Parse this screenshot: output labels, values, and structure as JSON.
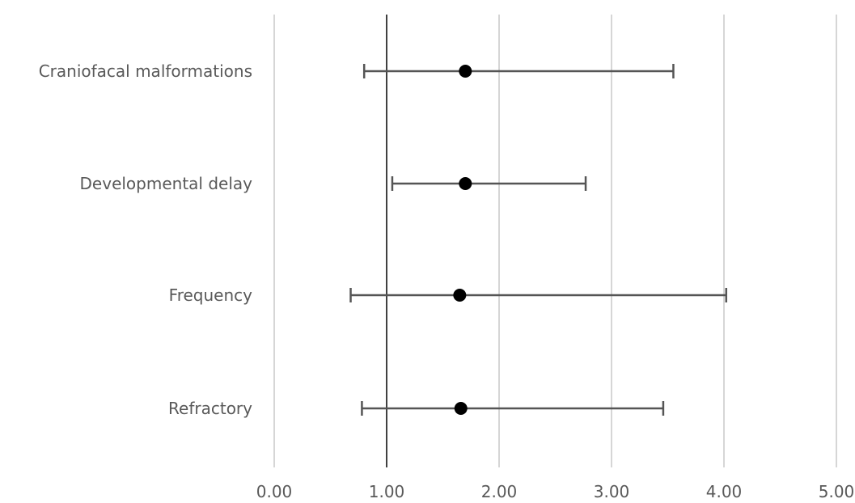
{
  "chart_data": {
    "type": "forest",
    "title": "",
    "xlabel": "",
    "ylabel": "",
    "xlim": [
      0,
      5
    ],
    "x_ticks": [
      "0.00",
      "1.00",
      "2.00",
      "3.00",
      "4.00",
      "5.00"
    ],
    "x_tick_values": [
      0,
      1,
      2,
      3,
      4,
      5
    ],
    "reference_value": 1,
    "grid": "vertical",
    "legend": "none",
    "categories": [
      "Craniofacal malformations",
      "Developmental delay",
      "Frequency",
      "Refractory"
    ],
    "estimates": [
      1.7,
      1.7,
      1.65,
      1.66
    ],
    "lower": [
      0.8,
      1.05,
      0.68,
      0.78
    ],
    "upper": [
      3.55,
      2.77,
      4.02,
      3.46
    ],
    "colors": {
      "grid": "#c8c8c8",
      "reference_line": "#404040",
      "error_bar": "#555555",
      "point": "#000000",
      "text": "#595959"
    }
  }
}
